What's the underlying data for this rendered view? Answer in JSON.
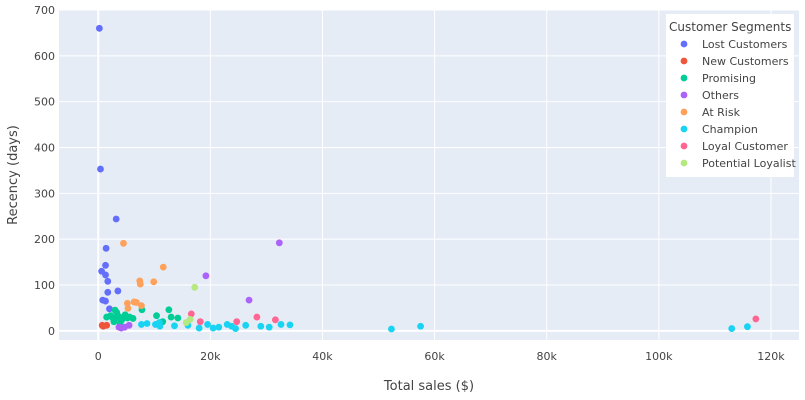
{
  "chart_data": {
    "type": "scatter",
    "title": "",
    "xlabel": "Total sales ($)",
    "ylabel": "Recency (days)",
    "xlim": [
      -7000,
      125000
    ],
    "ylim": [
      -20,
      700
    ],
    "x_ticks": [
      0,
      20000,
      40000,
      60000,
      80000,
      100000,
      120000
    ],
    "x_tick_labels": [
      "0",
      "20k",
      "40k",
      "60k",
      "80k",
      "100k",
      "120k"
    ],
    "y_ticks": [
      0,
      100,
      200,
      300,
      400,
      500,
      600,
      700
    ],
    "y_tick_labels": [
      "0",
      "100",
      "200",
      "300",
      "400",
      "500",
      "600",
      "700"
    ],
    "grid": true,
    "legend": {
      "title": "Customer Segments",
      "placement": "top-right"
    },
    "series": [
      {
        "name": "Lost Customers",
        "color": "#636efa",
        "points": [
          [
            200,
            660
          ],
          [
            400,
            353
          ],
          [
            3200,
            244
          ],
          [
            1400,
            180
          ],
          [
            1300,
            143
          ],
          [
            1300,
            122
          ],
          [
            600,
            130
          ],
          [
            1700,
            108
          ],
          [
            3500,
            87
          ],
          [
            1700,
            84
          ],
          [
            800,
            67
          ],
          [
            1300,
            65
          ],
          [
            2000,
            48
          ]
        ]
      },
      {
        "name": "New Customers",
        "color": "#ef553b",
        "points": [
          [
            700,
            12
          ],
          [
            900,
            10
          ],
          [
            1500,
            12
          ]
        ]
      },
      {
        "name": "Promising",
        "color": "#00cc96",
        "points": [
          [
            1500,
            30
          ],
          [
            2200,
            33
          ],
          [
            2800,
            20
          ],
          [
            3000,
            45
          ],
          [
            3300,
            40
          ],
          [
            3500,
            33
          ],
          [
            3700,
            28
          ],
          [
            3900,
            16
          ],
          [
            4200,
            24
          ],
          [
            4500,
            30
          ],
          [
            4800,
            35
          ],
          [
            5200,
            28
          ],
          [
            5600,
            30
          ],
          [
            6200,
            27
          ],
          [
            7800,
            46
          ],
          [
            10400,
            33
          ],
          [
            11500,
            20
          ],
          [
            12600,
            46
          ],
          [
            13000,
            30
          ],
          [
            14200,
            28
          ],
          [
            2600,
            28
          ]
        ]
      },
      {
        "name": "Others",
        "color": "#ab63fa",
        "points": [
          [
            32300,
            192
          ],
          [
            19200,
            120
          ],
          [
            26900,
            67
          ],
          [
            3700,
            8
          ],
          [
            4100,
            6
          ],
          [
            4700,
            8
          ],
          [
            5500,
            12
          ]
        ]
      },
      {
        "name": "At Risk",
        "color": "#ffa15a",
        "points": [
          [
            4500,
            191
          ],
          [
            11600,
            139
          ],
          [
            7400,
            109
          ],
          [
            9900,
            107
          ],
          [
            7500,
            102
          ],
          [
            6400,
            63
          ],
          [
            6800,
            62
          ],
          [
            5200,
            60
          ],
          [
            7700,
            55
          ],
          [
            5300,
            49
          ]
        ]
      },
      {
        "name": "Champion",
        "color": "#19d3f3",
        "points": [
          [
            7700,
            14
          ],
          [
            8700,
            16
          ],
          [
            10200,
            14
          ],
          [
            10900,
            18
          ],
          [
            13600,
            11
          ],
          [
            16000,
            12
          ],
          [
            18000,
            6
          ],
          [
            19500,
            14
          ],
          [
            20500,
            6
          ],
          [
            21500,
            8
          ],
          [
            23000,
            14
          ],
          [
            23800,
            10
          ],
          [
            24500,
            5
          ],
          [
            26300,
            12
          ],
          [
            29000,
            10
          ],
          [
            30500,
            8
          ],
          [
            32600,
            14
          ],
          [
            34200,
            13
          ],
          [
            52300,
            4
          ],
          [
            57500,
            10
          ],
          [
            113000,
            5
          ],
          [
            115800,
            9
          ],
          [
            11000,
            10
          ]
        ]
      },
      {
        "name": "Loyal Customer",
        "color": "#ff6692",
        "points": [
          [
            28300,
            30
          ],
          [
            31600,
            24
          ],
          [
            16600,
            37
          ],
          [
            18200,
            20
          ],
          [
            24700,
            20
          ],
          [
            117300,
            26
          ]
        ]
      },
      {
        "name": "Potential Loyalist",
        "color": "#b6e880",
        "points": [
          [
            17200,
            95
          ],
          [
            16400,
            25
          ],
          [
            15700,
            18
          ]
        ]
      }
    ]
  }
}
